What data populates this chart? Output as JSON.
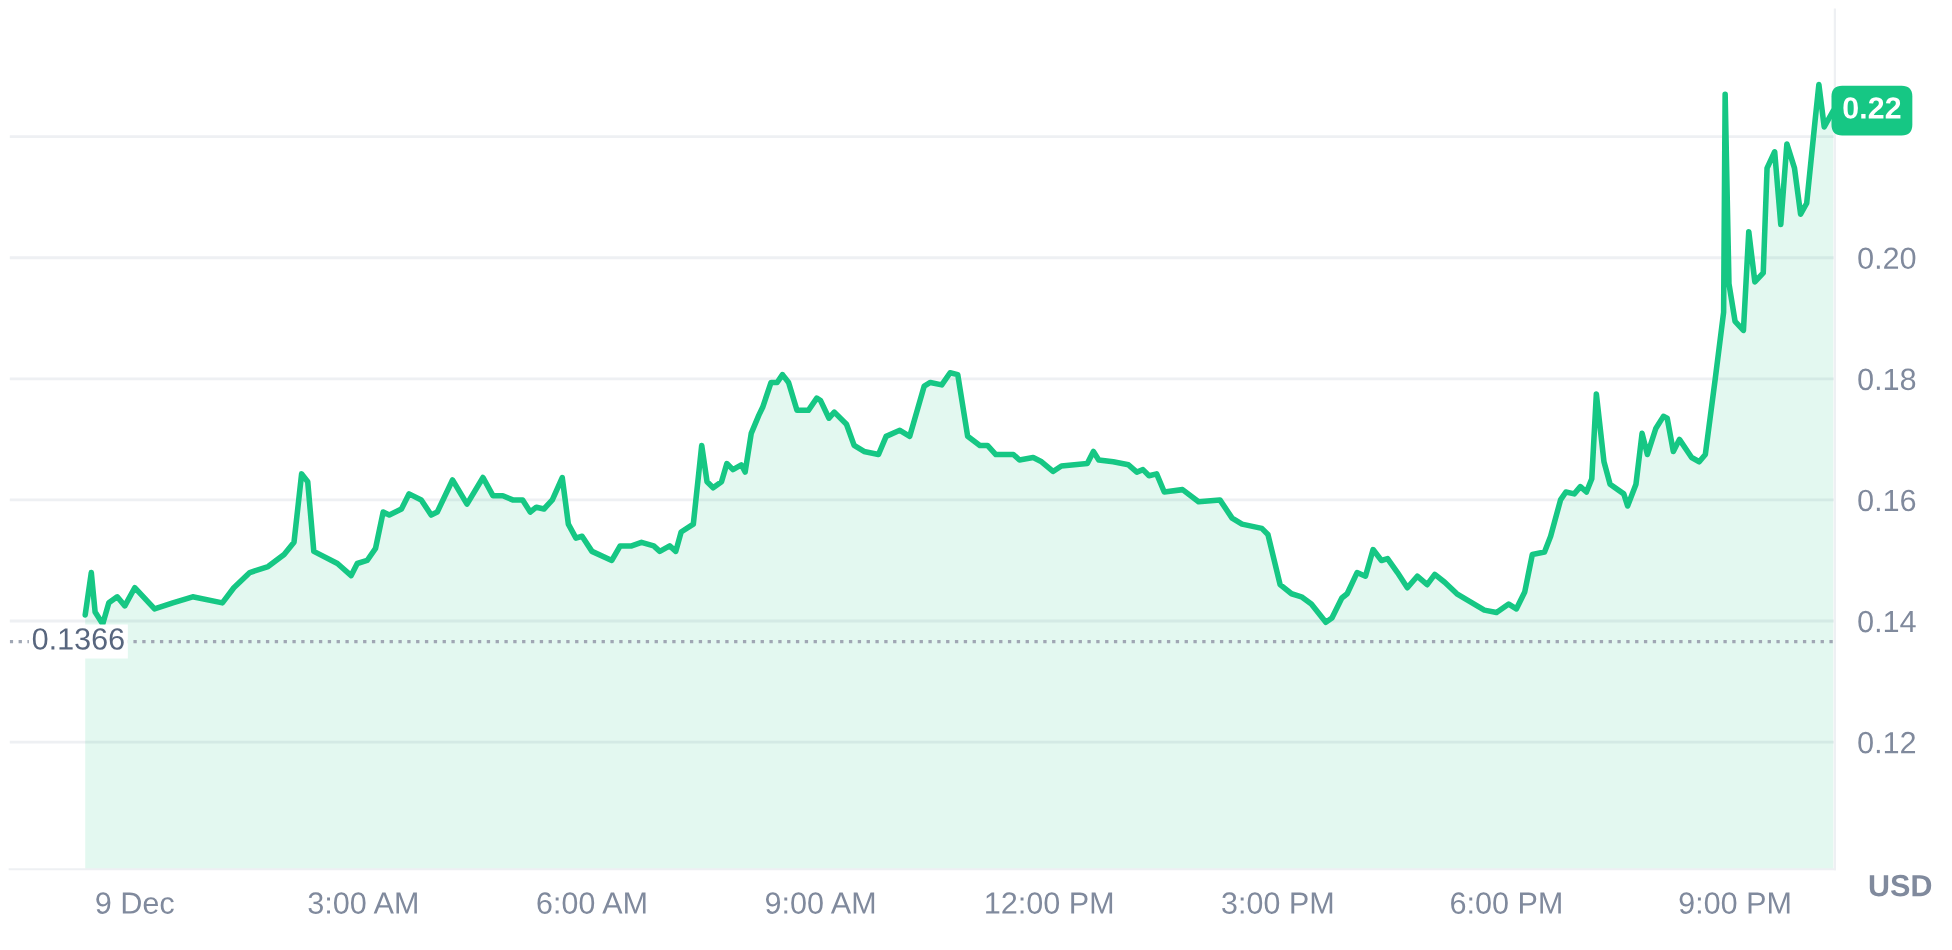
{
  "chart_data": {
    "type": "area",
    "ylabel": "USD",
    "xlim": [
      -1.64,
      22.31
    ],
    "ylim": [
      0.099,
      0.241
    ],
    "xticks": [
      {
        "value": 0,
        "label": "9 Dec"
      },
      {
        "value": 3,
        "label": "3:00 AM"
      },
      {
        "value": 6,
        "label": "6:00 AM"
      },
      {
        "value": 9,
        "label": "9:00 AM"
      },
      {
        "value": 12,
        "label": "12:00 PM"
      },
      {
        "value": 15,
        "label": "3:00 PM"
      },
      {
        "value": 18,
        "label": "6:00 PM"
      },
      {
        "value": 21,
        "label": "9:00 PM"
      }
    ],
    "yticks": [
      0.12,
      0.14,
      0.16,
      0.18,
      {
        "value": 0.2,
        "label": "0.20"
      },
      {
        "value": 0.22,
        "label": null
      }
    ],
    "grid": "y",
    "legend": false,
    "ref_lines": [
      {
        "axis": "y",
        "value": 0.1366,
        "label": "0.1366",
        "line_style": "dotted",
        "color": "#a0a7b4"
      }
    ],
    "annotations": [
      "0.22"
    ],
    "series": [
      {
        "color": "#16c784",
        "x": [
          -0.65,
          -0.57,
          -0.52,
          -0.42,
          -0.34,
          -0.23,
          -0.13,
          0,
          0.26,
          0.5,
          0.76,
          1.15,
          1.3,
          1.51,
          1.75,
          1.96,
          2.09,
          2.19,
          2.27,
          2.35,
          2.66,
          2.84,
          2.92,
          3.05,
          3.16,
          3.26,
          3.34,
          3.5,
          3.6,
          3.76,
          3.89,
          3.97,
          4.17,
          4.36,
          4.57,
          4.7,
          4.83,
          4.96,
          5.09,
          5.19,
          5.27,
          5.37,
          5.48,
          5.61,
          5.69,
          5.79,
          5.87,
          6.0,
          6.26,
          6.37,
          6.52,
          6.65,
          6.81,
          6.89,
          7.02,
          7.1,
          7.17,
          7.33,
          7.44,
          7.51,
          7.59,
          7.7,
          7.77,
          7.85,
          7.96,
          8.01,
          8.09,
          8.19,
          8.24,
          8.35,
          8.43,
          8.5,
          8.58,
          8.69,
          8.84,
          8.95,
          9.0,
          9.11,
          9.18,
          9.34,
          9.44,
          9.57,
          9.76,
          9.86,
          10.04,
          10.17,
          10.36,
          10.44,
          10.59,
          10.7,
          10.8,
          10.93,
          11.09,
          11.19,
          11.3,
          11.53,
          11.61,
          11.79,
          11.9,
          12.05,
          12.16,
          12.5,
          12.58,
          12.65,
          12.84,
          13.04,
          13.15,
          13.23,
          13.31,
          13.41,
          13.51,
          13.75,
          13.96,
          14.24,
          14.4,
          14.53,
          14.79,
          14.87,
          15.03,
          15.18,
          15.31,
          15.44,
          15.63,
          15.71,
          15.84,
          15.91,
          16.04,
          16.15,
          16.25,
          16.36,
          16.44,
          16.57,
          16.7,
          16.83,
          16.96,
          17.06,
          17.19,
          17.35,
          17.71,
          17.87,
          18.03,
          18.13,
          18.24,
          18.34,
          18.5,
          18.58,
          18.71,
          18.78,
          18.89,
          18.97,
          19.05,
          19.12,
          19.18,
          19.28,
          19.36,
          19.54,
          19.59,
          19.7,
          19.78,
          19.85,
          19.96,
          20.06,
          20.11,
          20.19,
          20.27,
          20.43,
          20.53,
          20.61,
          20.74,
          20.85,
          20.87,
          20.92,
          21.0,
          21.11,
          21.18,
          21.26,
          21.37,
          21.42,
          21.52,
          21.6,
          21.68,
          21.78,
          21.86,
          21.94,
          22.05,
          22.1,
          22.17,
          22.29
        ],
        "values": [
          0.141,
          0.148,
          0.1415,
          0.1395,
          0.143,
          0.144,
          0.1425,
          0.1455,
          0.142,
          0.143,
          0.144,
          0.143,
          0.1455,
          0.148,
          0.149,
          0.151,
          0.153,
          0.1643,
          0.163,
          0.1515,
          0.1495,
          0.1475,
          0.1495,
          0.15,
          0.152,
          0.158,
          0.1575,
          0.1585,
          0.161,
          0.16,
          0.1575,
          0.158,
          0.1633,
          0.1593,
          0.1637,
          0.1607,
          0.1607,
          0.16,
          0.16,
          0.158,
          0.1588,
          0.1585,
          0.16,
          0.1637,
          0.156,
          0.1537,
          0.154,
          0.1515,
          0.15,
          0.1524,
          0.1524,
          0.153,
          0.1524,
          0.1515,
          0.1524,
          0.1515,
          0.1547,
          0.156,
          0.169,
          0.163,
          0.162,
          0.163,
          0.166,
          0.165,
          0.1658,
          0.1646,
          0.171,
          0.174,
          0.1753,
          0.1794,
          0.1794,
          0.1807,
          0.1794,
          0.1748,
          0.1748,
          0.1768,
          0.1764,
          0.1735,
          0.1745,
          0.1725,
          0.169,
          0.168,
          0.1675,
          0.1705,
          0.1715,
          0.1705,
          0.1788,
          0.1794,
          0.179,
          0.181,
          0.1807,
          0.1705,
          0.169,
          0.169,
          0.1675,
          0.1675,
          0.1666,
          0.167,
          0.1663,
          0.1647,
          0.1656,
          0.166,
          0.168,
          0.1666,
          0.1663,
          0.1658,
          0.1646,
          0.165,
          0.164,
          0.1643,
          0.1613,
          0.1617,
          0.1597,
          0.16,
          0.157,
          0.156,
          0.1553,
          0.1543,
          0.146,
          0.1445,
          0.144,
          0.1428,
          0.1398,
          0.1405,
          0.1438,
          0.1445,
          0.148,
          0.1474,
          0.1518,
          0.15,
          0.1503,
          0.148,
          0.1455,
          0.1474,
          0.146,
          0.1477,
          0.1464,
          0.1445,
          0.1418,
          0.1414,
          0.1428,
          0.142,
          0.1448,
          0.151,
          0.1514,
          0.154,
          0.16,
          0.1613,
          0.161,
          0.1622,
          0.1613,
          0.1635,
          0.1775,
          0.1663,
          0.1626,
          0.161,
          0.159,
          0.1626,
          0.171,
          0.1675,
          0.1718,
          0.1738,
          0.1735,
          0.168,
          0.17,
          0.167,
          0.1663,
          0.1675,
          0.18,
          0.191,
          0.227,
          0.1957,
          0.1895,
          0.188,
          0.2043,
          0.196,
          0.1975,
          0.2148,
          0.2175,
          0.2055,
          0.2188,
          0.2148,
          0.2072,
          0.209,
          0.2226,
          0.2286,
          0.2216,
          0.2243
        ]
      }
    ]
  }
}
